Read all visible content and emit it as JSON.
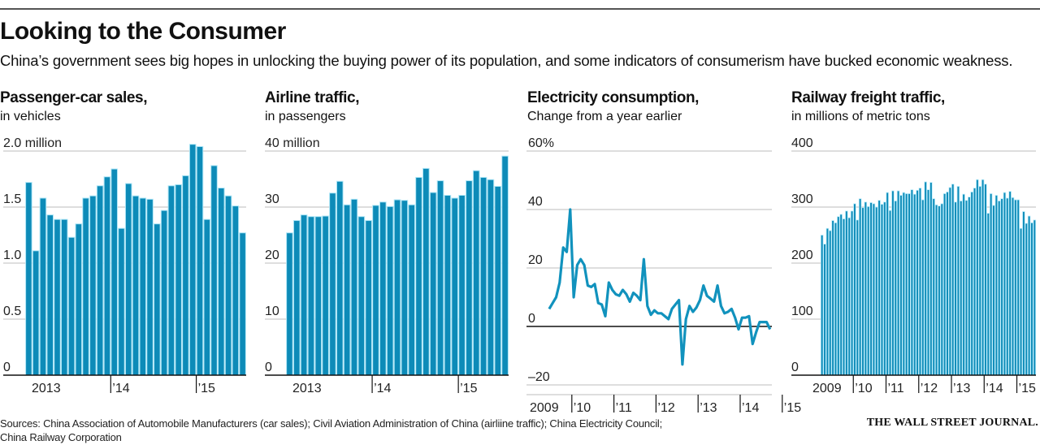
{
  "header": {
    "title": "Looking to the Consumer",
    "dek": "China’s government sees big hopes in unlocking the buying power of its population, and some indicators of consumerism have bucked economic weakness."
  },
  "footer": {
    "sources_line1": "Sources: China Association of Automobile Manufacturers (car sales); Civil Aviation Administration of China (airliine traffic); China Electricity Council;",
    "sources_line2": "China Railway Corporation",
    "brand": "THE WALL STREET JOURNAL."
  },
  "colors": {
    "bar": "#0d8bb8",
    "line": "#1192bd",
    "grid": "#bdbdbd"
  },
  "chart_data": [
    {
      "id": "car",
      "type": "bar",
      "title": "Passenger-car sales,",
      "subtitle": "in vehicles",
      "ylim": [
        0,
        2.0
      ],
      "yticks": [
        {
          "value": 0,
          "label": "0"
        },
        {
          "value": 0.5,
          "label": "0.5"
        },
        {
          "value": 1.0,
          "label": "1.0"
        },
        {
          "value": 1.5,
          "label": "1.5"
        },
        {
          "value": 2.0,
          "label": "2.0 million"
        }
      ],
      "xticks": [
        {
          "index": 0,
          "label": "2013",
          "tick": false
        },
        {
          "index": 12,
          "label": "’14",
          "tick": true
        },
        {
          "index": 24,
          "label": "’15",
          "tick": true
        }
      ],
      "grid": true,
      "values": [
        1.72,
        1.11,
        1.58,
        1.43,
        1.39,
        1.39,
        1.23,
        1.35,
        1.58,
        1.6,
        1.69,
        1.77,
        1.84,
        1.31,
        1.71,
        1.6,
        1.58,
        1.57,
        1.35,
        1.47,
        1.69,
        1.7,
        1.78,
        2.06,
        2.04,
        1.39,
        1.87,
        1.67,
        1.6,
        1.51,
        1.27
      ]
    },
    {
      "id": "air",
      "type": "bar",
      "title": "Airline traffic,",
      "subtitle": "in passengers",
      "ylim": [
        0,
        40
      ],
      "yticks": [
        {
          "value": 0,
          "label": "0"
        },
        {
          "value": 10,
          "label": "10"
        },
        {
          "value": 20,
          "label": "20"
        },
        {
          "value": 30,
          "label": "30"
        },
        {
          "value": 40,
          "label": "40 million"
        }
      ],
      "xticks": [
        {
          "index": 0,
          "label": "2013",
          "tick": false
        },
        {
          "index": 12,
          "label": "’14",
          "tick": true
        },
        {
          "index": 24,
          "label": "’15",
          "tick": true
        }
      ],
      "grid": true,
      "values": [
        25.4,
        27.6,
        28.6,
        28.3,
        28.3,
        28.4,
        32.5,
        34.6,
        30.4,
        31.4,
        28.3,
        27.6,
        30.3,
        30.9,
        30.1,
        31.3,
        31.2,
        30.4,
        35.3,
        36.9,
        32.6,
        34.7,
        32.1,
        31.6,
        32.1,
        34.7,
        36.5,
        35.3,
        34.9,
        33.7,
        39.1
      ]
    },
    {
      "id": "elec",
      "type": "line",
      "title": "Electricity consumption,",
      "subtitle": "Change from a year earlier",
      "ylim": [
        -20,
        60
      ],
      "yticks": [
        {
          "value": -20,
          "label": "–20"
        },
        {
          "value": 0,
          "label": "0"
        },
        {
          "value": 20,
          "label": "20"
        },
        {
          "value": 40,
          "label": "40"
        },
        {
          "value": 60,
          "label": "60%"
        }
      ],
      "xticks": [
        {
          "index": 0,
          "label": "2009",
          "tick": false
        },
        {
          "index": 12,
          "label": "’10",
          "tick": true
        },
        {
          "index": 24,
          "label": "’11",
          "tick": true
        },
        {
          "index": 36,
          "label": "’12",
          "tick": true
        },
        {
          "index": 48,
          "label": "’13",
          "tick": true
        },
        {
          "index": 60,
          "label": "’14",
          "tick": true
        },
        {
          "index": 72,
          "label": "’15",
          "tick": true
        }
      ],
      "x_start_index": 6,
      "grid": true,
      "values": [
        6,
        8,
        10,
        15,
        27,
        25.5,
        40,
        10,
        21,
        23,
        21,
        14,
        13.5,
        14.5,
        8,
        7.5,
        3.5,
        15,
        12.5,
        11,
        10.5,
        12.5,
        11,
        8.5,
        11.5,
        10.5,
        9,
        23,
        7,
        4,
        5.5,
        4.5,
        4.5,
        3.5,
        2.5,
        6,
        7.5,
        9,
        -13,
        2.5,
        7,
        5,
        6.5,
        9,
        14,
        10.5,
        9.5,
        8.5,
        14,
        7,
        4.5,
        5,
        6,
        3,
        -1,
        3,
        3,
        3.5,
        -6,
        -2,
        1.5,
        1.5,
        1.5,
        -1
      ]
    },
    {
      "id": "rail",
      "type": "bar",
      "title": "Railway freight traffic,",
      "subtitle": "in millions of metric tons",
      "ylim": [
        0,
        400
      ],
      "yticks": [
        {
          "value": 0,
          "label": "0"
        },
        {
          "value": 100,
          "label": "100"
        },
        {
          "value": 200,
          "label": "200"
        },
        {
          "value": 300,
          "label": "300"
        },
        {
          "value": 400,
          "label": "400"
        }
      ],
      "xticks": [
        {
          "index": 0,
          "label": "2009",
          "tick": false
        },
        {
          "index": 12,
          "label": "’10",
          "tick": true
        },
        {
          "index": 24,
          "label": "’11",
          "tick": true
        },
        {
          "index": 36,
          "label": "’12",
          "tick": true
        },
        {
          "index": 48,
          "label": "’13",
          "tick": true
        },
        {
          "index": 60,
          "label": "’14",
          "tick": true
        },
        {
          "index": 72,
          "label": "’15",
          "tick": true
        }
      ],
      "grid": true,
      "values": [
        250,
        234,
        262,
        258,
        276,
        272,
        283,
        287,
        279,
        293,
        281,
        293,
        306,
        277,
        315,
        299,
        309,
        301,
        308,
        306,
        300,
        312,
        305,
        309,
        326,
        294,
        329,
        311,
        329,
        321,
        326,
        324,
        324,
        331,
        323,
        330,
        334,
        313,
        345,
        331,
        344,
        315,
        304,
        302,
        306,
        324,
        327,
        335,
        341,
        309,
        337,
        311,
        323,
        312,
        318,
        327,
        334,
        349,
        337,
        349,
        341,
        289,
        324,
        303,
        321,
        311,
        315,
        326,
        316,
        328,
        317,
        313,
        313,
        262,
        292,
        271,
        284,
        272,
        277
      ]
    }
  ]
}
